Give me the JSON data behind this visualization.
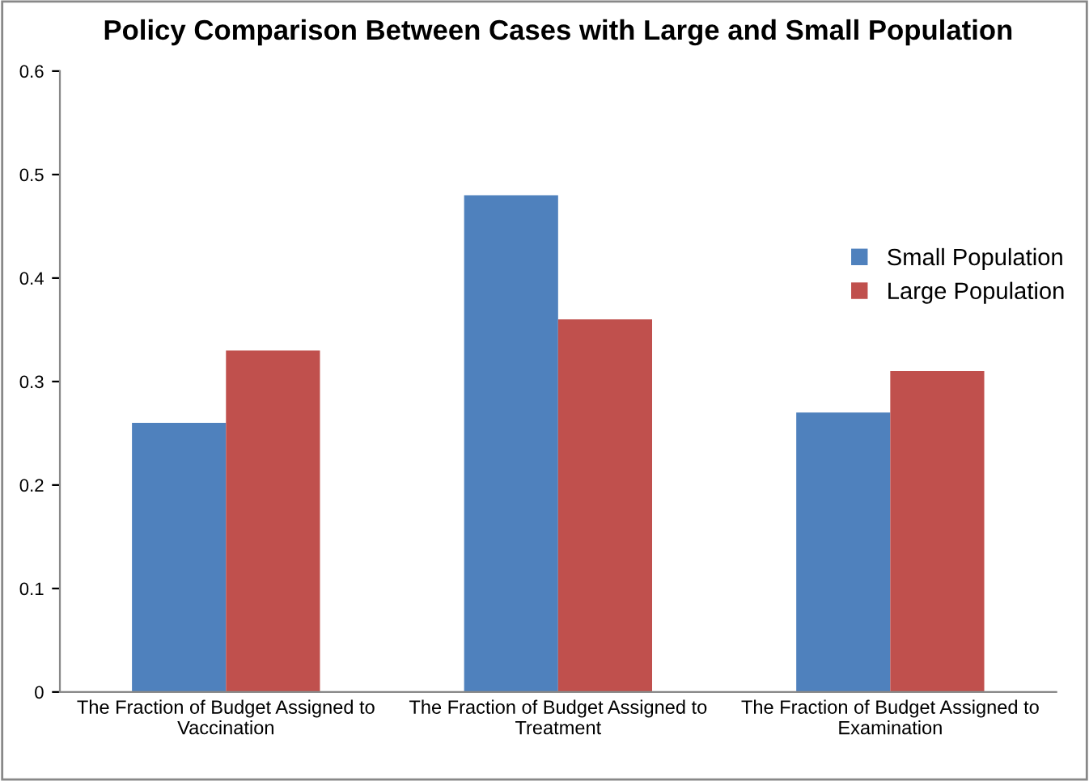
{
  "chart_data": {
    "type": "bar",
    "title": "Policy Comparison Between Cases with Large and Small Population",
    "categories": [
      "The Fraction of Budget Assigned to Vaccination",
      "The Fraction of Budget Assigned to Treatment",
      "The Fraction of Budget Assigned to Examination"
    ],
    "series": [
      {
        "name": "Small Population",
        "color": "#4f81bd",
        "values": [
          0.26,
          0.48,
          0.27
        ]
      },
      {
        "name": "Large Population",
        "color": "#c0504d",
        "values": [
          0.33,
          0.36,
          0.31
        ]
      }
    ],
    "ylim": [
      0,
      0.6
    ],
    "yticks": [
      0,
      0.1,
      0.2,
      0.3,
      0.4,
      0.5,
      0.6
    ],
    "grid": false,
    "legend": "right"
  }
}
